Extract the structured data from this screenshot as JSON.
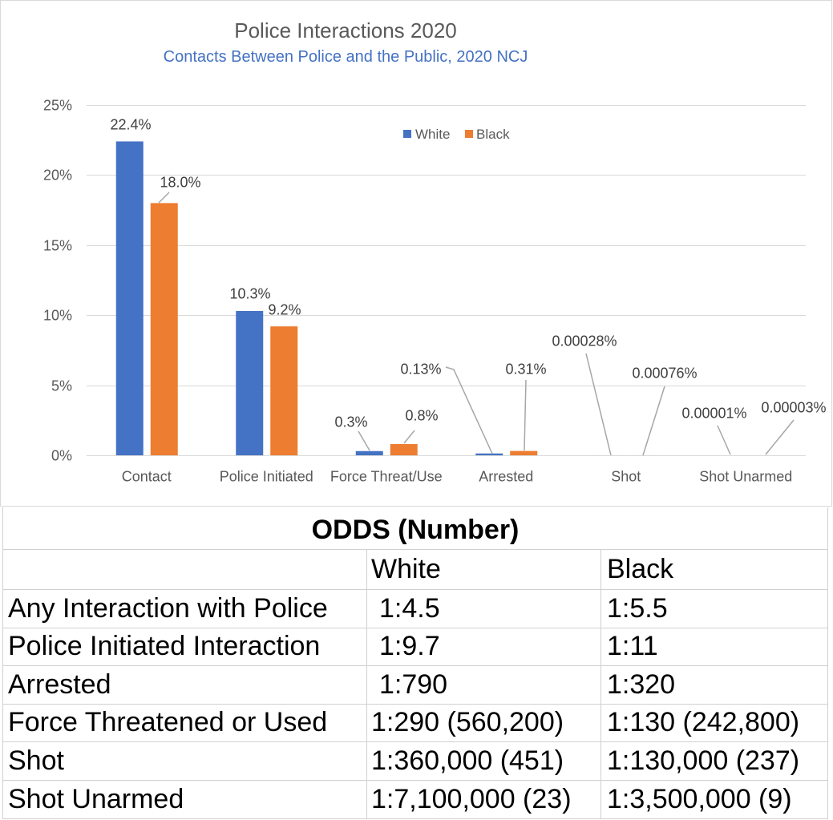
{
  "chart_data": {
    "type": "bar",
    "title": "Police Interactions 2020",
    "subtitle": "Contacts Between Police and the Public, 2020 NCJ",
    "categories": [
      "Contact",
      "Police Initiated",
      "Force Threat/Use",
      "Arrested",
      "Shot",
      "Shot Unarmed"
    ],
    "series": [
      {
        "name": "White",
        "color": "#4472C4",
        "values": [
          22.4,
          10.3,
          0.3,
          0.13,
          0.00028,
          1e-05
        ],
        "labels": [
          "22.4%",
          "10.3%",
          "0.3%",
          "0.13%",
          "0.00028%",
          "0.00001%"
        ]
      },
      {
        "name": "Black",
        "color": "#ED7D31",
        "values": [
          18.0,
          9.2,
          0.8,
          0.31,
          0.00076,
          3e-05
        ],
        "labels": [
          "18.0%",
          "9.2%",
          "0.8%",
          "0.31%",
          "0.00076%",
          "0.00003%"
        ]
      }
    ],
    "ylim": [
      0,
      25
    ],
    "yticks": [
      0,
      5,
      10,
      15,
      20,
      25
    ],
    "ytick_labels": [
      "0%",
      "5%",
      "10%",
      "15%",
      "20%",
      "25%"
    ],
    "grid": true,
    "legend": "top-center"
  },
  "odds_table": {
    "title": "ODDS (Number)",
    "columns": [
      "",
      "White",
      "Black"
    ],
    "rows": [
      {
        "label": "Any Interaction with Police",
        "white": "1:4.5",
        "black": "1:5.5"
      },
      {
        "label": "Police Initiated Interaction",
        "white": "1:9.7",
        "black": "1:11"
      },
      {
        "label": "Arrested",
        "white": "1:790",
        "black": "1:320"
      },
      {
        "label": "Force Threatened or Used",
        "white": "1:290 (560,200)",
        "black": "1:130 (242,800)"
      },
      {
        "label": "Shot",
        "white": "1:360,000 (451)",
        "black": "1:130,000 (237)"
      },
      {
        "label": "Shot Unarmed",
        "white": "1:7,100,000 (23)",
        "black": "1:3,500,000 (9)"
      }
    ]
  },
  "colors": {
    "text": "#595959",
    "subtitle": "#4472C4",
    "grid": "#D9D9D9"
  }
}
